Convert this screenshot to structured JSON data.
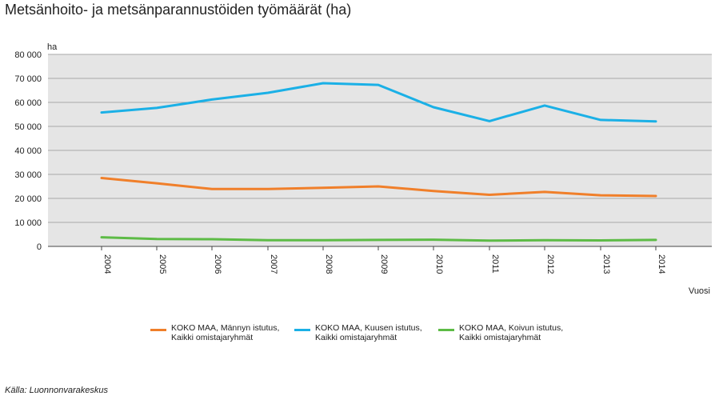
{
  "title": "Metsänhoito- ja metsänparannustöiden työmäärät (ha)",
  "source": "Källa: Luonnonvarakeskus",
  "chart_data": {
    "type": "line",
    "title": "Metsänhoito- ja metsänparannustöiden työmäärät (ha)",
    "xlabel": "Vuosi",
    "ylabel": "ha",
    "x": [
      "2004",
      "2005",
      "2006",
      "2007",
      "2008",
      "2009",
      "2010",
      "2011",
      "2012",
      "2013",
      "2014"
    ],
    "ylim": [
      0,
      80000
    ],
    "yticks": [
      0,
      10000,
      20000,
      30000,
      40000,
      50000,
      60000,
      70000,
      80000
    ],
    "ytick_labels": [
      "0",
      "10 000",
      "20 000",
      "30 000",
      "40 000",
      "50 000",
      "60 000",
      "70 000",
      "80 000"
    ],
    "grid": true,
    "legend_position": "bottom",
    "series": [
      {
        "name": "KOKO MAA, Männyn istutus, Kaikki omistajaryhmät",
        "label_lines": [
          "KOKO MAA, Männyn istutus,",
          "Kaikki omistajaryhmät"
        ],
        "color": "#f07f2a",
        "values": [
          28500,
          26300,
          23900,
          23900,
          24400,
          25000,
          23100,
          21500,
          22700,
          21300,
          21000
        ]
      },
      {
        "name": "KOKO MAA, Kuusen istutus, Kaikki omistajaryhmät",
        "label_lines": [
          "KOKO MAA, Kuusen istutus,",
          "Kaikki omistajaryhmät"
        ],
        "color": "#1bb0e6",
        "values": [
          55800,
          57700,
          61200,
          64000,
          68000,
          67300,
          58000,
          52200,
          58700,
          52700,
          52100
        ]
      },
      {
        "name": "KOKO MAA, Koivun istutus, Kaikki omistajaryhmät",
        "label_lines": [
          "KOKO MAA, Koivun istutus,",
          "Kaikki omistajaryhmät"
        ],
        "color": "#5dbb46",
        "values": [
          3800,
          3100,
          3000,
          2600,
          2600,
          2700,
          2800,
          2400,
          2600,
          2500,
          2700
        ]
      }
    ]
  }
}
